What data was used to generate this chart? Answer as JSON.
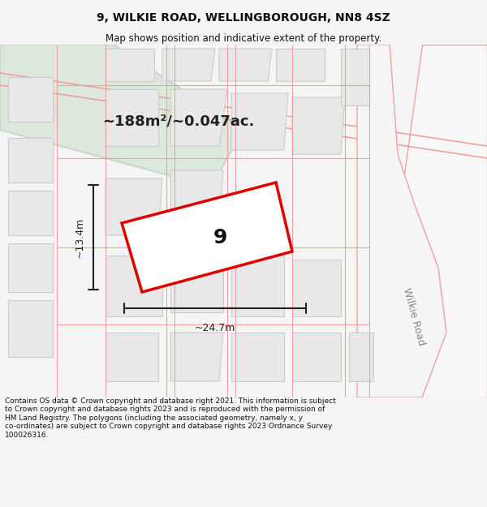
{
  "title_line1": "9, WILKIE ROAD, WELLINGBOROUGH, NN8 4SZ",
  "title_line2": "Map shows position and indicative extent of the property.",
  "area_label": "~188m²/~0.047ac.",
  "plot_number": "9",
  "dim_width": "~24.7m",
  "dim_height": "~13.4m",
  "road_label": "Wilkie Road",
  "footer": "Contains OS data © Crown copyright and database right 2021. This information is subject\nto Crown copyright and database rights 2023 and is reproduced with the permission of\nHM Land Registry. The polygons (including the associated geometry, namely x, y\nco-ordinates) are subject to Crown copyright and database rights 2023 Ordnance Survey\n100026316.",
  "bg_color": "#f5f5f5",
  "map_bg": "#ffffff",
  "plot_fill": "#ffffff",
  "plot_edge": "#e00000",
  "building_fill": "#e8e8e8",
  "road_fill": "#dce8dc",
  "road_stroke": "#c8d8c8",
  "pink_line": "#f0a0a0",
  "dim_color": "#222222",
  "title_color": "#111111",
  "footer_color": "#111111"
}
